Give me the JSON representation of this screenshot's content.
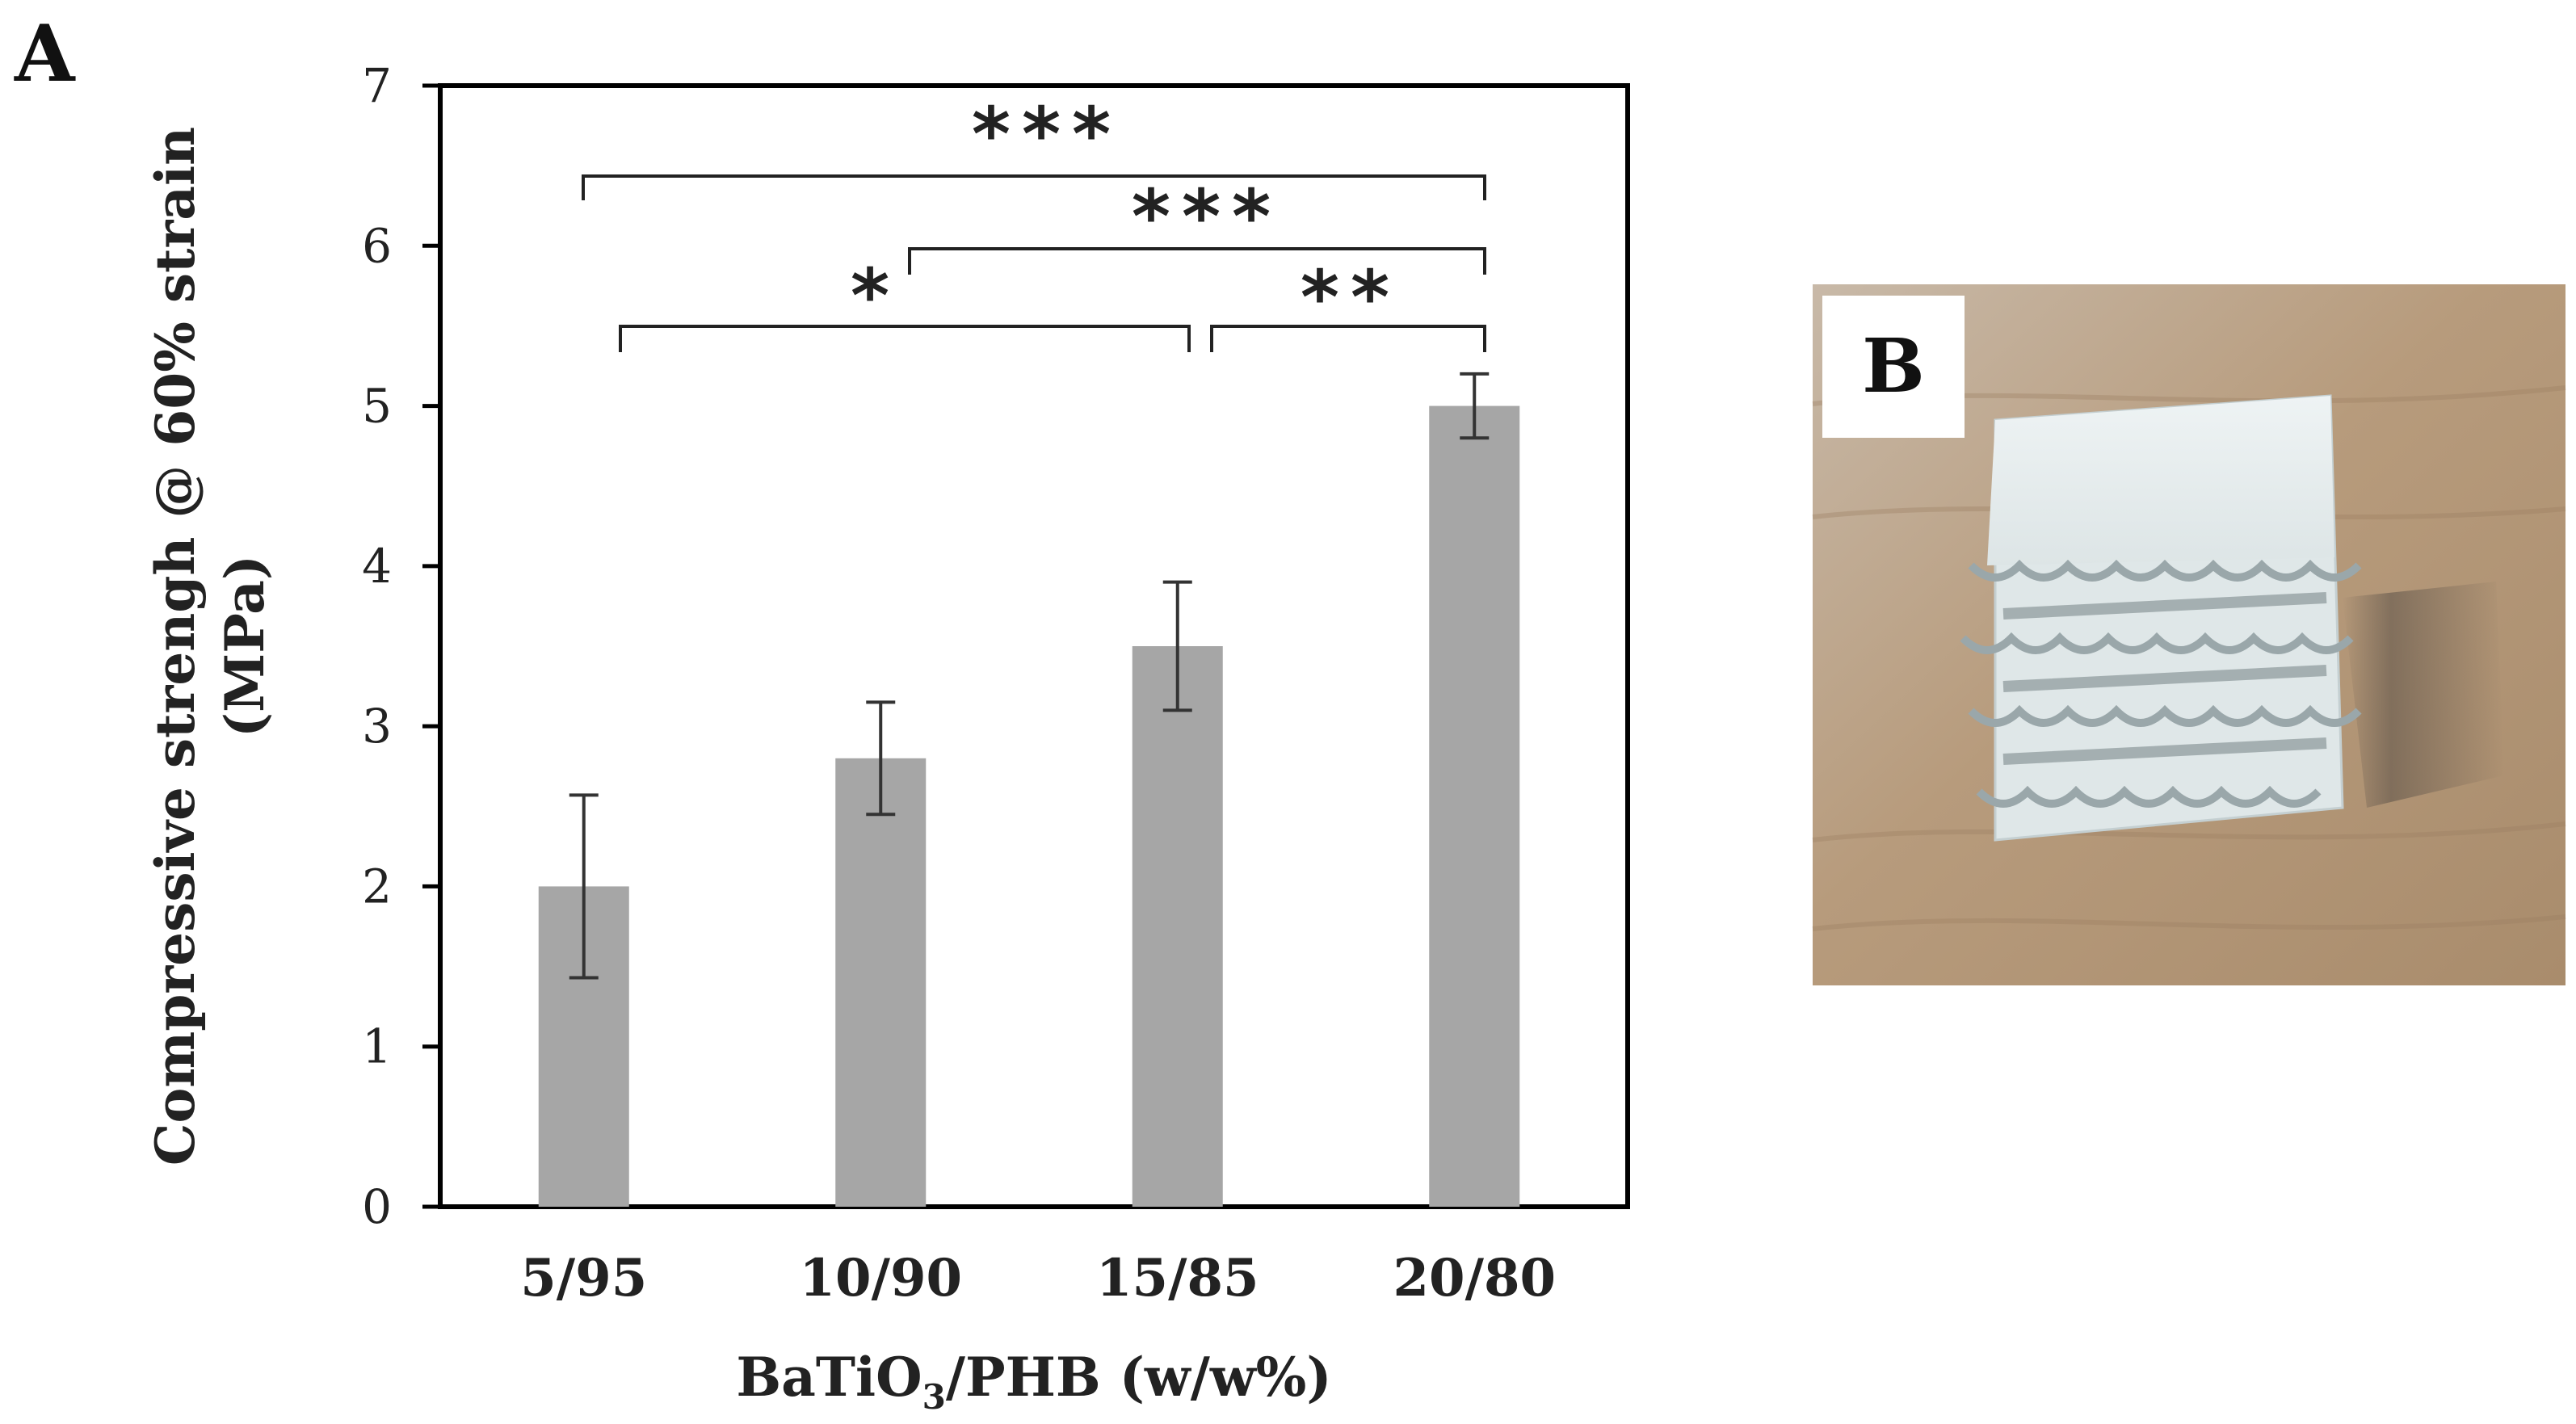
{
  "panels": {
    "a_label": "A",
    "b_label": "B"
  },
  "chart_data": {
    "type": "bar",
    "categories": [
      "5/95",
      "10/90",
      "15/85",
      "20/80"
    ],
    "values": [
      2.0,
      2.8,
      3.5,
      5.0
    ],
    "errors": [
      0.57,
      0.35,
      0.4,
      0.2
    ],
    "ylabel_line1": "Compressive strengh @ 60% strain",
    "ylabel_line2": "(MPa)",
    "xlabel": "BaTiO3/PHB (w/w%)",
    "xlabel_parts": {
      "prefix": "BaTiO",
      "subscript": "3",
      "suffix": "/PHB (w/w%)"
    },
    "ylim": [
      0,
      7
    ],
    "yticks": [
      0,
      1,
      2,
      3,
      4,
      5,
      6,
      7
    ],
    "bar_color": "#a6a6a6",
    "grid": false,
    "significance": [
      {
        "from": "5/95",
        "to": "20/80",
        "label": "***"
      },
      {
        "from": "10/90",
        "to": "20/80",
        "label": "***"
      },
      {
        "from": "5/95",
        "to": "15/85",
        "label": "*"
      },
      {
        "from": "15/85",
        "to": "20/80",
        "label": "**"
      }
    ]
  },
  "photo": {
    "description_colors": {
      "table": "#b29472",
      "scaffold": "#e6ecec"
    }
  }
}
